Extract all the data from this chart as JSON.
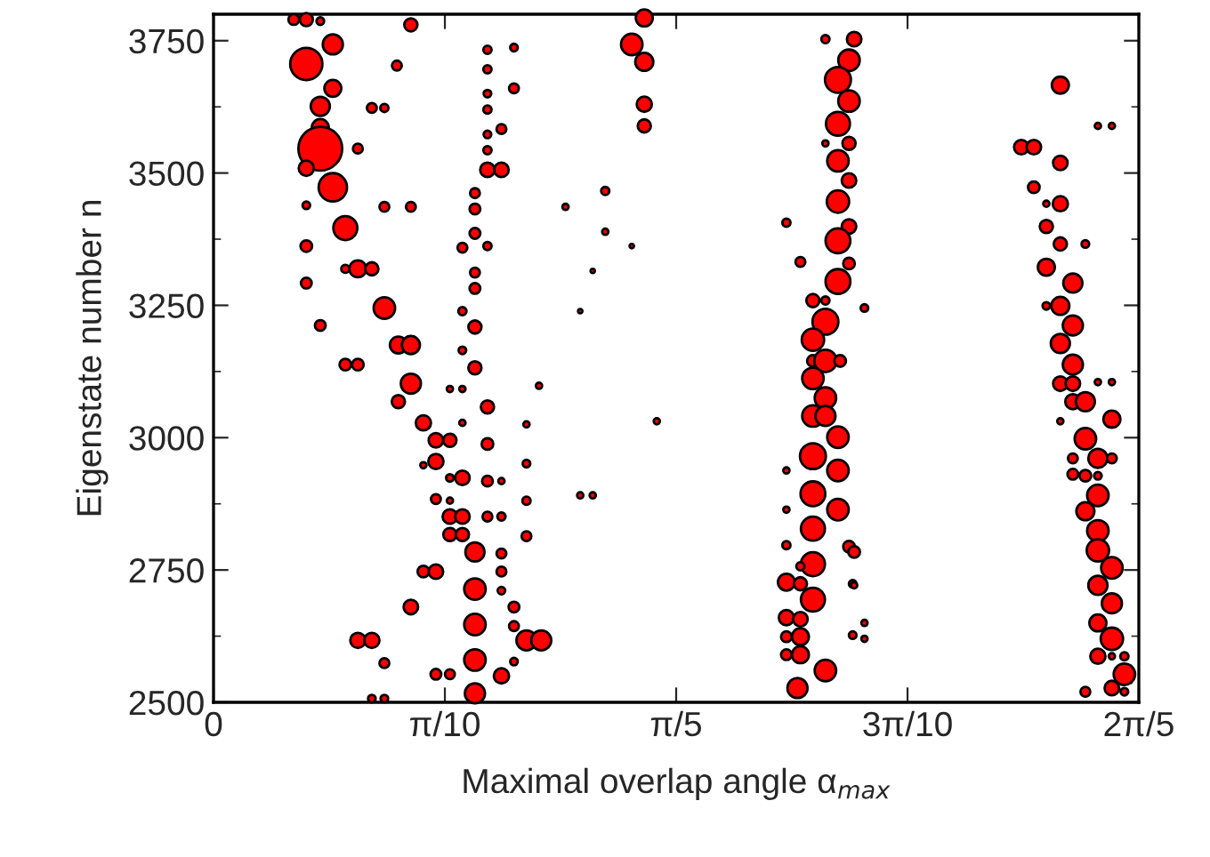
{
  "chart_data": {
    "type": "bubble",
    "xlabel": "Maximal overlap angle α$_{max}$",
    "ylabel": "Eigenstate number n",
    "xlim": [
      0,
      1.2566
    ],
    "ylim": [
      2500,
      3800
    ],
    "xticks": [
      0,
      {
        "value": 0.3142,
        "label": "π/10"
      },
      {
        "value": 0.6283,
        "label": "π/5"
      },
      {
        "value": 0.9425,
        "label": "3π/10"
      },
      {
        "value": 1.2566,
        "label": "2π/5"
      }
    ],
    "yticks": [
      2500,
      2750,
      3000,
      3250,
      3500,
      3750
    ],
    "grid": false,
    "series": [
      {
        "color": "#ff0000",
        "x": [
          0.109,
          0.126,
          0.145,
          0.268,
          0.162,
          0.126,
          0.372,
          0.408,
          0.162,
          0.249,
          0.372,
          0.408,
          0.372,
          0.145,
          0.215,
          0.232,
          0.372,
          0.145,
          0.391,
          0.372,
          0.145,
          0.196,
          0.372,
          0.126,
          0.372,
          0.391,
          0.162,
          0.355,
          0.126,
          0.232,
          0.268,
          0.355,
          0.179,
          0.355,
          0.126,
          0.338,
          0.372,
          0.196,
          0.215,
          0.179,
          0.355,
          0.126,
          0.355,
          0.232,
          0.338,
          0.145,
          0.355,
          0.251,
          0.268,
          0.338,
          0.179,
          0.196,
          0.355,
          0.268,
          0.321,
          0.338,
          0.442,
          0.251,
          0.372,
          0.285,
          0.338,
          0.302,
          0.321,
          0.372,
          0.425,
          0.302,
          0.285,
          0.425,
          0.338,
          0.321,
          0.372,
          0.391,
          0.302,
          0.321,
          0.425,
          0.321,
          0.338,
          0.372,
          0.391,
          0.321,
          0.338,
          0.425,
          0.355,
          0.391,
          0.285,
          0.302,
          0.391,
          0.355,
          0.391,
          0.408,
          0.268,
          0.355,
          0.408,
          0.196,
          0.215,
          0.425,
          0.445,
          0.355,
          0.232,
          0.408,
          0.302,
          0.321,
          0.391,
          0.355,
          0.215,
          0.232,
          0.585,
          0.568,
          0.585,
          0.585,
          0.585,
          0.532,
          0.532,
          0.568,
          0.515,
          0.498,
          0.602,
          0.498,
          0.515,
          0.478,
          0.831,
          0.87,
          0.863,
          0.848,
          0.863,
          0.848,
          0.863,
          0.831,
          0.848,
          0.863,
          0.848,
          0.863,
          0.778,
          0.848,
          0.797,
          0.863,
          0.848,
          0.814,
          0.831,
          0.831,
          0.814,
          0.814,
          0.831,
          0.851,
          0.814,
          0.831,
          0.814,
          0.831,
          0.848,
          0.814,
          0.848,
          0.778,
          0.814,
          0.848,
          0.778,
          0.814,
          0.863,
          0.778,
          0.814,
          0.797,
          0.778,
          0.797,
          0.868,
          0.814,
          0.778,
          0.797,
          0.797,
          0.778,
          0.778,
          0.797,
          0.868,
          0.831,
          0.793,
          0.884,
          0.87,
          0.884,
          0.884,
          0.87,
          1.15,
          1.097,
          1.114,
          1.15,
          1.114,
          1.131,
          1.15,
          1.131,
          1.15,
          1.184,
          1.131,
          1.167,
          1.15,
          1.131,
          1.167,
          1.15,
          1.167,
          1.15,
          1.167,
          1.201,
          1.22,
          1.167,
          1.184,
          1.15,
          1.22,
          1.184,
          1.201,
          1.22,
          1.167,
          1.167,
          1.184,
          1.201,
          1.201,
          1.184,
          1.201,
          1.201,
          1.22,
          1.201,
          1.22,
          1.201,
          1.22,
          1.201,
          1.237,
          1.237,
          1.22,
          1.184,
          1.237,
          1.22,
          1.201,
          1.22
        ],
        "values": [
          3790,
          3790,
          3787,
          3780,
          3743,
          3706,
          3733,
          3737,
          3660,
          3703,
          3696,
          3660,
          3650,
          3626,
          3623,
          3623,
          3620,
          3586,
          3583,
          3573,
          3546,
          3546,
          3543,
          3509,
          3506,
          3506,
          3473,
          3462,
          3439,
          3436,
          3436,
          3432,
          3396,
          3386,
          3362,
          3359,
          3362,
          3319,
          3319,
          3319,
          3312,
          3292,
          3282,
          3245,
          3239,
          3212,
          3209,
          3175,
          3175,
          3165,
          3138,
          3138,
          3132,
          3102,
          3092,
          3092,
          3098,
          3068,
          3058,
          3028,
          3028,
          2995,
          2995,
          2988,
          3025,
          2955,
          2948,
          2951,
          2924,
          2924,
          2918,
          2918,
          2884,
          2881,
          2881,
          2851,
          2851,
          2851,
          2851,
          2817,
          2817,
          2814,
          2784,
          2781,
          2747,
          2747,
          2747,
          2714,
          2711,
          2680,
          2680,
          2647,
          2644,
          2617,
          2617,
          2617,
          2617,
          2580,
          2574,
          2577,
          2553,
          2553,
          2550,
          2517,
          2507,
          2507,
          3793,
          3743,
          3710,
          3630,
          3589,
          3466,
          3389,
          3362,
          3315,
          3239,
          3031,
          2891,
          2891,
          3436,
          3753,
          3753,
          3713,
          3676,
          3636,
          3593,
          3556,
          3556,
          3523,
          3486,
          3446,
          3399,
          3406,
          3372,
          3332,
          3329,
          3295,
          3259,
          3259,
          3219,
          3185,
          3145,
          3145,
          3145,
          3112,
          3075,
          3041,
          3041,
          3001,
          2965,
          2938,
          2938,
          2894,
          2864,
          2864,
          2828,
          2794,
          2797,
          2761,
          2757,
          2727,
          2724,
          2724,
          2694,
          2660,
          2657,
          2624,
          2624,
          2590,
          2590,
          2627,
          2560,
          2527,
          3245,
          2784,
          2650,
          2620,
          2721,
          3666,
          3549,
          3549,
          3519,
          3473,
          3442,
          3442,
          3399,
          3366,
          3366,
          3322,
          3292,
          3249,
          3249,
          3212,
          3178,
          3138,
          3102,
          3102,
          3105,
          3105,
          3068,
          3068,
          3031,
          3035,
          2998,
          2961,
          2961,
          2961,
          2931,
          2928,
          2928,
          2891,
          2861,
          2824,
          2787,
          2754,
          2721,
          2687,
          2650,
          2620,
          2587,
          2587,
          2553,
          2527,
          2520,
          2520,
          2587,
          3589,
          3589
        ],
        "sizes": [
          0.06,
          0.09,
          0.03,
          0.09,
          0.21,
          0.54,
          0.035,
          0.03,
          0.15,
          0.05,
          0.035,
          0.05,
          0.03,
          0.19,
          0.05,
          0.035,
          0.035,
          0.15,
          0.05,
          0.03,
          1,
          0.05,
          0.035,
          0.12,
          0.11,
          0.11,
          0.42,
          0.05,
          0.03,
          0.05,
          0.05,
          0.06,
          0.3,
          0.06,
          0.07,
          0.05,
          0.035,
          0.15,
          0.09,
          0.035,
          0.05,
          0.06,
          0.06,
          0.24,
          0.035,
          0.06,
          0.09,
          0.15,
          0.17,
          0.03,
          0.07,
          0.07,
          0.09,
          0.21,
          0.02,
          0.02,
          0.02,
          0.09,
          0.09,
          0.12,
          0.02,
          0.11,
          0.09,
          0.07,
          0.02,
          0.12,
          0.02,
          0.03,
          0.11,
          0.03,
          0.06,
          0.02,
          0.05,
          0.02,
          0.035,
          0.11,
          0.11,
          0.05,
          0.035,
          0.09,
          0.09,
          0.05,
          0.19,
          0.05,
          0.07,
          0.11,
          0.05,
          0.24,
          0.03,
          0.06,
          0.11,
          0.24,
          0.05,
          0.12,
          0.12,
          0.21,
          0.21,
          0.24,
          0.05,
          0.03,
          0.06,
          0.05,
          0.12,
          0.21,
          0.03,
          0.03,
          0.15,
          0.24,
          0.17,
          0.12,
          0.09,
          0.035,
          0.02,
          0.01,
          0.01,
          0.01,
          0.02,
          0.02,
          0.02,
          0.02,
          0.035,
          0.11,
          0.24,
          0.35,
          0.24,
          0.3,
          0.09,
          0.02,
          0.24,
          0.11,
          0.26,
          0.11,
          0.035,
          0.32,
          0.05,
          0.07,
          0.32,
          0.09,
          0.035,
          0.35,
          0.26,
          0.07,
          0.26,
          0.07,
          0.24,
          0.24,
          0.24,
          0.21,
          0.24,
          0.35,
          0.24,
          0.02,
          0.32,
          0.24,
          0.02,
          0.3,
          0.07,
          0.035,
          0.3,
          0.035,
          0.15,
          0.09,
          0.03,
          0.3,
          0.12,
          0.11,
          0.15,
          0.06,
          0.06,
          0.15,
          0.03,
          0.24,
          0.21,
          0.03,
          0.07,
          0.02,
          0.02,
          0.02,
          0.15,
          0.11,
          0.11,
          0.11,
          0.07,
          0.02,
          0.12,
          0.09,
          0.09,
          0.03,
          0.15,
          0.19,
          0.17,
          0.03,
          0.21,
          0.19,
          0.21,
          0.11,
          0.11,
          0.02,
          0.02,
          0.12,
          0.19,
          0.02,
          0.15,
          0.24,
          0.19,
          0.05,
          0.05,
          0.06,
          0.07,
          0.03,
          0.24,
          0.17,
          0.24,
          0.26,
          0.24,
          0.19,
          0.21,
          0.15,
          0.26,
          0.12,
          0.035,
          0.24,
          0.11,
          0.05,
          0.03,
          0.02,
          0.02,
          0.02
        ]
      }
    ]
  }
}
